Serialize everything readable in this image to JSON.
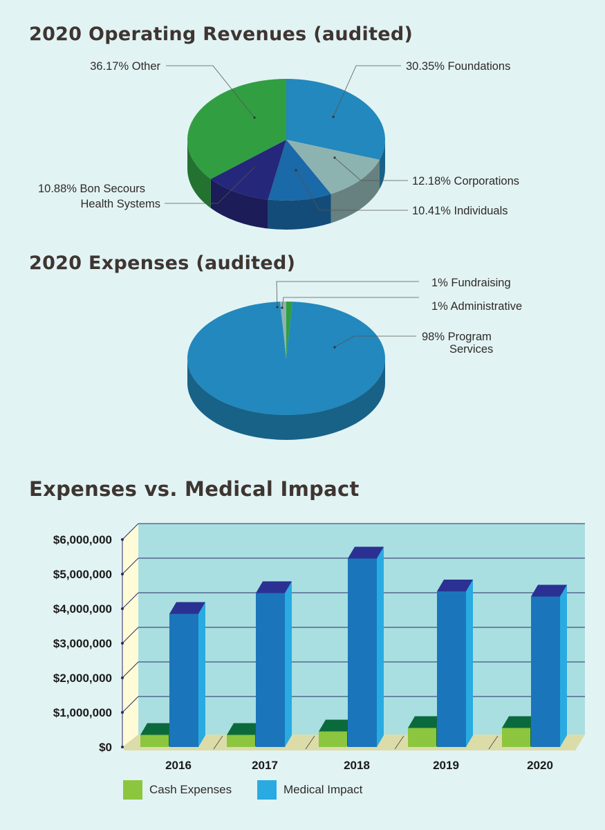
{
  "titles": {
    "revenues": "2020 Operating Revenues (audited)",
    "expenses": "2020 Expenses (audited)",
    "medical": "Expenses vs. Medical Impact"
  },
  "chart_data": [
    {
      "type": "pie",
      "title": "2020 Operating Revenues (audited)",
      "slices": [
        {
          "label": "30.35% Foundations",
          "value": 30.35,
          "color": "#2288bd"
        },
        {
          "label": "12.18% Corporations",
          "value": 12.18,
          "color": "#8db3b1"
        },
        {
          "label": "10.41% Individuals",
          "value": 10.41,
          "color": "#1a69a8"
        },
        {
          "label": "10.88% Bon Secours Health Systems",
          "value": 10.88,
          "color": "#25277a"
        },
        {
          "label": "36.17% Other",
          "value": 36.17,
          "color": "#319e42"
        }
      ]
    },
    {
      "type": "pie",
      "title": "2020 Expenses (audited)",
      "slices": [
        {
          "label": "1% Administrative",
          "value": 1,
          "color": "#319e42"
        },
        {
          "label": "98% Program Services",
          "value": 98,
          "color": "#2288bd"
        },
        {
          "label": "1% Fundraising",
          "value": 1,
          "color": "#8db3b1"
        }
      ]
    },
    {
      "type": "bar",
      "title": "Expenses vs. Medical Impact",
      "categories": [
        "2016",
        "2017",
        "2018",
        "2019",
        "2020"
      ],
      "series": [
        {
          "name": "Cash Expenses",
          "color": "#8cc63f",
          "values": [
            350000,
            350000,
            450000,
            550000,
            550000
          ]
        },
        {
          "name": "Medical Impact",
          "color": "#1b75bb",
          "values": [
            3850000,
            4450000,
            5450000,
            4500000,
            4350000
          ]
        }
      ],
      "yticks": [
        "$0",
        "$1,000,000",
        "$2,000,000",
        "$3,000,000",
        "$4,000,000",
        "$5,000,000",
        "$6,000,000"
      ],
      "ylim": [
        0,
        6000000
      ],
      "legend": "bottom-left"
    }
  ]
}
